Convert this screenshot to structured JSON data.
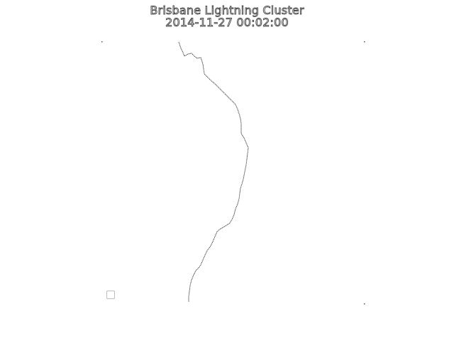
{
  "map": {
    "title": "Brisbane Lightning Cluster",
    "timestamp": "2014-11-27 00:02:00",
    "colors": {
      "background": "#ffffff",
      "coastline": "#333333",
      "title_text": "#ffffff",
      "title_outline": "#444444",
      "corner_marker": "#555555"
    }
  }
}
